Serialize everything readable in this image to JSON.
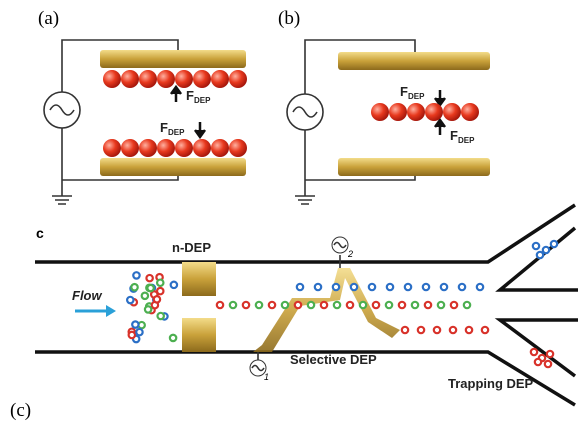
{
  "panel_a": {
    "label": "(a)",
    "force_labels": [
      {
        "symbol": "F",
        "subscript": "DEP"
      },
      {
        "symbol": "F",
        "subscript": "DEP"
      }
    ]
  },
  "panel_b": {
    "label": "(b)",
    "force_labels": [
      {
        "symbol": "F",
        "subscript": "DEP"
      },
      {
        "symbol": "F",
        "subscript": "DEP"
      }
    ]
  },
  "panel_c": {
    "letter": "c",
    "electrode_label": "n-DEP",
    "flow_label": "Flow",
    "selective_label": "Selective DEP",
    "trapping_label": "Trapping DEP",
    "source_1": "1",
    "source_2": "2"
  },
  "caption": "(c)"
}
